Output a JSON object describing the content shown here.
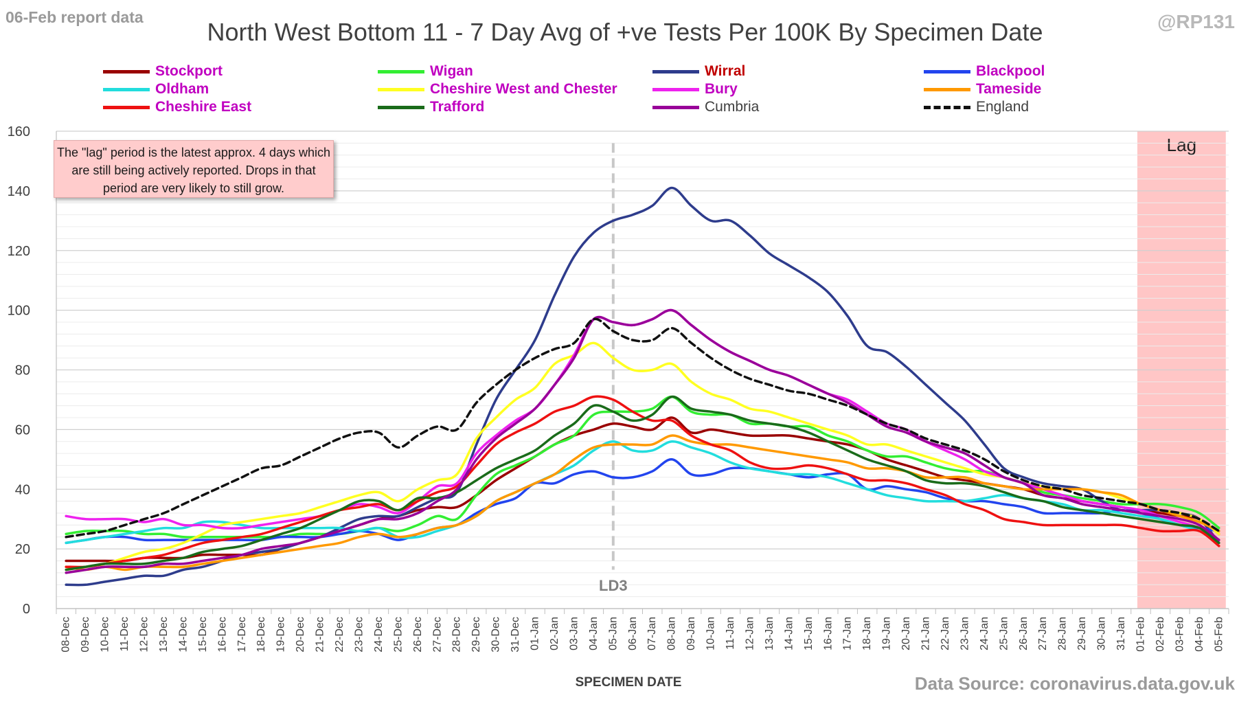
{
  "header": {
    "report_date": "06-Feb report data",
    "handle": "@RP131",
    "title": "North West Bottom 11 - 7 Day Avg of +ve Tests Per 100K By Specimen Date",
    "source": "Data Source: coronavirus.data.gov.uk",
    "note": "The \"lag\" period is the latest approx. 4 days which are still being actively reported. Drops in that period are very likely to still grow."
  },
  "chart_data": {
    "type": "line",
    "title": "North West Bottom 11 - 7 Day Avg of +ve Tests Per 100K By Specimen Date",
    "xlabel": "SPECIMEN DATE",
    "ylabel": "",
    "ylim": [
      0,
      160
    ],
    "yticks": [
      0,
      20,
      40,
      60,
      80,
      100,
      120,
      140,
      160
    ],
    "grid": true,
    "legend_position": "top",
    "categories": [
      "08-Dec",
      "09-Dec",
      "10-Dec",
      "11-Dec",
      "12-Dec",
      "13-Dec",
      "14-Dec",
      "15-Dec",
      "16-Dec",
      "17-Dec",
      "18-Dec",
      "19-Dec",
      "20-Dec",
      "21-Dec",
      "22-Dec",
      "23-Dec",
      "24-Dec",
      "25-Dec",
      "26-Dec",
      "27-Dec",
      "28-Dec",
      "29-Dec",
      "30-Dec",
      "31-Dec",
      "01-Jan",
      "02-Jan",
      "03-Jan",
      "04-Jan",
      "05-Jan",
      "06-Jan",
      "07-Jan",
      "08-Jan",
      "09-Jan",
      "10-Jan",
      "11-Jan",
      "12-Jan",
      "13-Jan",
      "14-Jan",
      "15-Jan",
      "16-Jan",
      "17-Jan",
      "18-Jan",
      "19-Jan",
      "20-Jan",
      "21-Jan",
      "22-Jan",
      "23-Jan",
      "24-Jan",
      "25-Jan",
      "26-Jan",
      "27-Jan",
      "28-Jan",
      "29-Jan",
      "30-Jan",
      "31-Jan",
      "01-Feb",
      "02-Feb",
      "03-Feb",
      "04-Feb",
      "05-Feb"
    ],
    "vertical_marker": {
      "at": "05-Jan",
      "label": "LD3"
    },
    "lag_region": {
      "from": "01-Feb",
      "to": "05-Feb",
      "label": "Lag",
      "color": "#ffc0c0"
    },
    "series": [
      {
        "name": "Stockport",
        "color": "#990000",
        "width": 3.5,
        "dash": false,
        "label_color": "#c000c0",
        "values": [
          16,
          16,
          16,
          16,
          17,
          17,
          17,
          18,
          18,
          18,
          18,
          20,
          22,
          24,
          26,
          28,
          30,
          31,
          33,
          34,
          34,
          38,
          43,
          47,
          51,
          55,
          58,
          60,
          62,
          61,
          60,
          64,
          59,
          60,
          59,
          58,
          58,
          58,
          57,
          56,
          55,
          53,
          50,
          48,
          46,
          44,
          43,
          42,
          41,
          40,
          38,
          37,
          36,
          35,
          34,
          33,
          32,
          31,
          30,
          25
        ]
      },
      {
        "name": "Wigan",
        "color": "#33ee33",
        "width": 3.5,
        "dash": false,
        "label_color": "#c000c0",
        "values": [
          25,
          26,
          26,
          26,
          25,
          25,
          24,
          24,
          24,
          24,
          24,
          24,
          25,
          25,
          25,
          26,
          27,
          26,
          28,
          31,
          30,
          38,
          45,
          48,
          51,
          55,
          58,
          65,
          66,
          66,
          67,
          71,
          66,
          65,
          65,
          62,
          62,
          61,
          61,
          58,
          56,
          53,
          51,
          51,
          49,
          47,
          46,
          46,
          44,
          42,
          39,
          38,
          37,
          36,
          35,
          35,
          35,
          34,
          32,
          27
        ]
      },
      {
        "name": "Wirral",
        "color": "#2e3c8c",
        "width": 3.5,
        "dash": false,
        "label_color": "#c00000",
        "values": [
          8,
          8,
          9,
          10,
          11,
          11,
          13,
          14,
          16,
          18,
          19,
          20,
          22,
          24,
          27,
          30,
          31,
          31,
          34,
          37,
          39,
          55,
          70,
          80,
          90,
          105,
          118,
          126,
          130,
          132,
          135,
          141,
          135,
          130,
          130,
          125,
          119,
          115,
          111,
          106,
          98,
          88,
          86,
          81,
          75,
          69,
          63,
          55,
          47,
          44,
          42,
          41,
          40,
          36,
          33,
          33,
          33,
          32,
          30,
          22
        ]
      },
      {
        "name": "Blackpool",
        "color": "#2244ee",
        "width": 3.5,
        "dash": false,
        "label_color": "#c000c0",
        "values": [
          22,
          23,
          24,
          24,
          23,
          23,
          23,
          23,
          23,
          23,
          23,
          24,
          24,
          24,
          25,
          26,
          25,
          23,
          25,
          27,
          28,
          32,
          35,
          37,
          42,
          42,
          45,
          46,
          44,
          44,
          46,
          50,
          45,
          45,
          47,
          47,
          46,
          45,
          44,
          45,
          45,
          40,
          41,
          40,
          39,
          37,
          36,
          36,
          35,
          34,
          32,
          32,
          32,
          32,
          33,
          32,
          30,
          28,
          27,
          26
        ]
      },
      {
        "name": "Oldham",
        "color": "#22dddd",
        "width": 3.5,
        "dash": false,
        "label_color": "#c000c0",
        "values": [
          22,
          23,
          24,
          25,
          26,
          27,
          27,
          29,
          29,
          28,
          27,
          27,
          27,
          27,
          27,
          26,
          27,
          24,
          24,
          26,
          28,
          31,
          36,
          39,
          42,
          45,
          48,
          53,
          56,
          53,
          53,
          56,
          54,
          52,
          49,
          47,
          46,
          45,
          45,
          44,
          42,
          40,
          38,
          37,
          36,
          36,
          36,
          37,
          38,
          37,
          36,
          35,
          33,
          33,
          32,
          31,
          30,
          28,
          26,
          23
        ]
      },
      {
        "name": "Cheshire West and Chester",
        "color": "#ffff22",
        "width": 3.5,
        "dash": false,
        "label_color": "#c000c0",
        "values": [
          13,
          14,
          15,
          17,
          19,
          20,
          22,
          25,
          28,
          29,
          30,
          31,
          32,
          34,
          36,
          38,
          39,
          36,
          40,
          43,
          45,
          57,
          64,
          70,
          74,
          82,
          85,
          89,
          84,
          80,
          80,
          82,
          76,
          72,
          70,
          67,
          66,
          64,
          62,
          60,
          58,
          55,
          55,
          53,
          51,
          49,
          47,
          45,
          44,
          42,
          41,
          40,
          40,
          39,
          37,
          35,
          33,
          32,
          30,
          25
        ]
      },
      {
        "name": "Bury",
        "color": "#ee22ee",
        "width": 3.5,
        "dash": false,
        "label_color": "#c000c0",
        "values": [
          31,
          30,
          30,
          30,
          29,
          30,
          28,
          28,
          27,
          27,
          28,
          29,
          30,
          31,
          33,
          35,
          34,
          32,
          36,
          41,
          42,
          52,
          58,
          63,
          67,
          75,
          85,
          97,
          96,
          95,
          97,
          100,
          95,
          90,
          86,
          83,
          80,
          78,
          75,
          72,
          70,
          66,
          62,
          60,
          56,
          53,
          50,
          46,
          44,
          42,
          40,
          38,
          36,
          35,
          34,
          33,
          31,
          29,
          27,
          23
        ]
      },
      {
        "name": "Tameside",
        "color": "#ff9900",
        "width": 3.5,
        "dash": false,
        "label_color": "#c000c0",
        "values": [
          14,
          13,
          14,
          13,
          14,
          14,
          14,
          15,
          16,
          17,
          18,
          19,
          20,
          21,
          22,
          24,
          25,
          24,
          25,
          27,
          28,
          31,
          36,
          39,
          42,
          45,
          50,
          54,
          55,
          55,
          55,
          58,
          56,
          55,
          55,
          54,
          53,
          52,
          51,
          50,
          49,
          47,
          47,
          46,
          44,
          44,
          44,
          42,
          41,
          40,
          40,
          40,
          40,
          39,
          38,
          35,
          33,
          31,
          29,
          26
        ]
      },
      {
        "name": "Cheshire East",
        "color": "#ee1111",
        "width": 3.5,
        "dash": false,
        "label_color": "#c000c0",
        "values": [
          14,
          14,
          15,
          16,
          17,
          18,
          20,
          22,
          23,
          24,
          25,
          27,
          29,
          31,
          33,
          34,
          35,
          33,
          36,
          39,
          41,
          48,
          55,
          59,
          62,
          66,
          68,
          71,
          70,
          66,
          63,
          63,
          58,
          55,
          53,
          49,
          47,
          47,
          48,
          47,
          45,
          43,
          43,
          42,
          40,
          38,
          35,
          33,
          30,
          29,
          28,
          28,
          28,
          28,
          28,
          27,
          26,
          26,
          26,
          21
        ]
      },
      {
        "name": "Trafford",
        "color": "#1a6b1a",
        "width": 3.5,
        "dash": false,
        "label_color": "#c000c0",
        "values": [
          13,
          14,
          15,
          15,
          15,
          16,
          17,
          19,
          20,
          21,
          23,
          25,
          27,
          30,
          33,
          36,
          36,
          33,
          37,
          37,
          39,
          43,
          47,
          50,
          53,
          58,
          62,
          68,
          66,
          63,
          65,
          71,
          67,
          66,
          65,
          63,
          62,
          61,
          59,
          56,
          53,
          50,
          48,
          46,
          43,
          42,
          42,
          41,
          39,
          37,
          36,
          34,
          33,
          32,
          31,
          30,
          29,
          28,
          27,
          22
        ]
      },
      {
        "name": "Cumbria",
        "color": "#990099",
        "width": 3.5,
        "dash": false,
        "label_color": "#404040",
        "values": [
          12,
          13,
          14,
          14,
          14,
          15,
          15,
          16,
          17,
          18,
          20,
          21,
          22,
          24,
          26,
          28,
          30,
          30,
          32,
          36,
          40,
          50,
          57,
          62,
          67,
          75,
          84,
          97,
          96,
          95,
          97,
          100,
          95,
          90,
          86,
          83,
          80,
          78,
          75,
          72,
          69,
          65,
          61,
          59,
          56,
          54,
          52,
          48,
          44,
          42,
          38,
          37,
          35,
          34,
          33,
          32,
          31,
          30,
          28,
          23
        ]
      },
      {
        "name": "England",
        "color": "#111111",
        "width": 3.5,
        "dash": true,
        "label_color": "#404040",
        "values": [
          24,
          25,
          26,
          28,
          30,
          32,
          35,
          38,
          41,
          44,
          47,
          48,
          51,
          54,
          57,
          59,
          59,
          54,
          58,
          61,
          60,
          69,
          75,
          80,
          84,
          87,
          89,
          97,
          93,
          90,
          90,
          94,
          89,
          84,
          80,
          77,
          75,
          73,
          72,
          70,
          68,
          65,
          62,
          60,
          57,
          55,
          53,
          50,
          46,
          43,
          41,
          40,
          38,
          37,
          36,
          35,
          33,
          32,
          30,
          26
        ]
      }
    ]
  }
}
